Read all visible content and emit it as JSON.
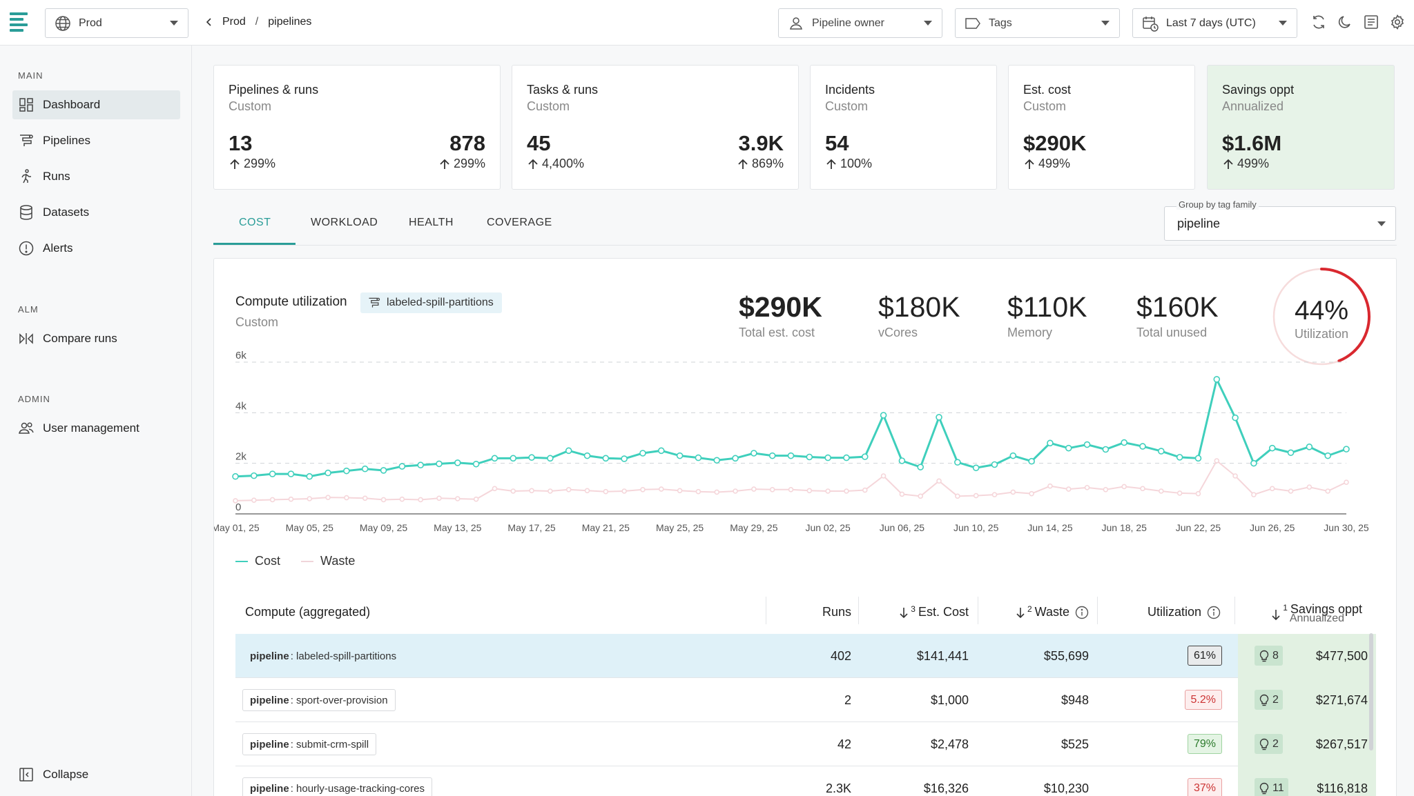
{
  "topbar": {
    "env_label": "Prod",
    "breadcrumb": [
      "Prod",
      "pipelines"
    ],
    "filters": [
      {
        "icon": "person-icon",
        "label": "Pipeline owner"
      },
      {
        "icon": "tag-icon",
        "label": "Tags"
      },
      {
        "icon": "calendar-clock-icon",
        "label": "Last 7 days (UTC)"
      }
    ],
    "icons": [
      "refresh-icon",
      "moon-icon",
      "notes-icon",
      "gear-icon"
    ]
  },
  "sidebar": {
    "sections": [
      {
        "title": "MAIN",
        "items": [
          {
            "label": "Dashboard",
            "icon": "dashboard-icon",
            "active": true
          },
          {
            "label": "Pipelines",
            "icon": "pipelines-icon"
          },
          {
            "label": "Runs",
            "icon": "runs-icon"
          },
          {
            "label": "Datasets",
            "icon": "database-icon"
          },
          {
            "label": "Alerts",
            "icon": "alert-icon"
          }
        ]
      },
      {
        "title": "ALM",
        "items": [
          {
            "label": "Compare runs",
            "icon": "compare-icon"
          }
        ]
      },
      {
        "title": "ADMIN",
        "items": [
          {
            "label": "User management",
            "icon": "users-icon"
          }
        ]
      }
    ],
    "collapse_label": "Collapse"
  },
  "cards": [
    {
      "title": "Pipelines & runs",
      "subtitle": "Custom",
      "values": [
        {
          "value": "13",
          "pct": "299%"
        },
        {
          "value": "878",
          "pct": "299%"
        }
      ]
    },
    {
      "title": "Tasks & runs",
      "subtitle": "Custom",
      "values": [
        {
          "value": "45",
          "pct": "4,400%"
        },
        {
          "value": "3.9K",
          "pct": "869%"
        }
      ]
    },
    {
      "title": "Incidents",
      "subtitle": "Custom",
      "values": [
        {
          "value": "54",
          "pct": "100%"
        }
      ]
    },
    {
      "title": "Est. cost",
      "subtitle": "Custom",
      "values": [
        {
          "value": "$290K",
          "pct": "499%"
        }
      ]
    },
    {
      "title": "Savings oppt",
      "subtitle": "Annualized",
      "values": [
        {
          "value": "$1.6M",
          "pct": "499%"
        }
      ]
    }
  ],
  "tabs": [
    "COST",
    "WORKLOAD",
    "HEALTH",
    "COVERAGE"
  ],
  "active_tab": "COST",
  "group_by": {
    "label": "Group by tag family",
    "value": "pipeline"
  },
  "panel": {
    "title": "Compute utilization",
    "subtitle": "Custom",
    "chip": "labeled-spill-partitions",
    "metrics": [
      {
        "value": "$290K",
        "label": "Total est. cost",
        "bold": true
      },
      {
        "value": "$180K",
        "label": "vCores"
      },
      {
        "value": "$110K",
        "label": "Memory"
      },
      {
        "value": "$160K",
        "label": "Total unused"
      }
    ],
    "utilization": {
      "value": "44%",
      "label": "Utilization",
      "fraction": 0.44
    }
  },
  "colors": {
    "cost": "#3fcfbc",
    "waste": "#f5d6da",
    "accent": "#2a9d98",
    "ring": "#d9282f"
  },
  "chart_data": {
    "type": "line",
    "x": [
      "May 01, 25",
      "May 02, 25",
      "May 03, 25",
      "May 04, 25",
      "May 05, 25",
      "May 06, 25",
      "May 07, 25",
      "May 08, 25",
      "May 09, 25",
      "May 10, 25",
      "May 11, 25",
      "May 12, 25",
      "May 13, 25",
      "May 14, 25",
      "May 15, 25",
      "May 16, 25",
      "May 17, 25",
      "May 18, 25",
      "May 19, 25",
      "May 20, 25",
      "May 21, 25",
      "May 22, 25",
      "May 23, 25",
      "May 24, 25",
      "May 25, 25",
      "May 26, 25",
      "May 27, 25",
      "May 28, 25",
      "May 29, 25",
      "May 30, 25",
      "May 31, 25",
      "Jun 01, 25",
      "Jun 02, 25",
      "Jun 03, 25",
      "Jun 04, 25",
      "Jun 05, 25",
      "Jun 06, 25",
      "Jun 07, 25",
      "Jun 08, 25",
      "Jun 09, 25",
      "Jun 10, 25",
      "Jun 11, 25",
      "Jun 12, 25",
      "Jun 13, 25",
      "Jun 14, 25",
      "Jun 15, 25",
      "Jun 16, 25",
      "Jun 17, 25",
      "Jun 18, 25",
      "Jun 19, 25",
      "Jun 20, 25",
      "Jun 21, 25",
      "Jun 22, 25",
      "Jun 23, 25",
      "Jun 24, 25",
      "Jun 25, 25",
      "Jun 26, 25",
      "Jun 27, 25",
      "Jun 28, 25",
      "Jun 29, 25",
      "Jun 30, 25"
    ],
    "tick_labels": [
      "May 01, 25",
      "May 05, 25",
      "May 09, 25",
      "May 13, 25",
      "May 17, 25",
      "May 21, 25",
      "May 25, 25",
      "May 29, 25",
      "Jun 02, 25",
      "Jun 06, 25",
      "Jun 10, 25",
      "Jun 14, 25",
      "Jun 18, 25",
      "Jun 22, 25",
      "Jun 26, 25",
      "Jun 30, 25"
    ],
    "y_ticks": [
      "0",
      "2k",
      "4k",
      "6k"
    ],
    "ylim": [
      0,
      6000
    ],
    "grid": true,
    "series": [
      {
        "name": "Cost",
        "values": [
          1480,
          1510,
          1580,
          1580,
          1480,
          1620,
          1700,
          1780,
          1720,
          1880,
          1930,
          1980,
          2020,
          1970,
          2200,
          2200,
          2230,
          2200,
          2500,
          2300,
          2200,
          2180,
          2400,
          2500,
          2300,
          2220,
          2120,
          2200,
          2400,
          2300,
          2300,
          2250,
          2220,
          2220,
          2260,
          3900,
          2100,
          1850,
          3820,
          2040,
          1820,
          1950,
          2300,
          2080,
          2800,
          2600,
          2740,
          2550,
          2820,
          2670,
          2480,
          2240,
          2200,
          5320,
          3800,
          2000,
          2600,
          2420,
          2650,
          2300,
          2560
        ],
        "note": ""
      },
      {
        "name": "Waste",
        "values": [
          520,
          540,
          560,
          580,
          600,
          650,
          640,
          620,
          560,
          580,
          560,
          620,
          600,
          580,
          1000,
          900,
          920,
          900,
          960,
          920,
          880,
          900,
          960,
          980,
          920,
          880,
          860,
          900,
          980,
          960,
          960,
          920,
          900,
          900,
          940,
          1500,
          780,
          700,
          1300,
          700,
          720,
          760,
          860,
          800,
          1100,
          980,
          1040,
          960,
          1080,
          1000,
          900,
          820,
          800,
          2100,
          1500,
          760,
          1000,
          900,
          1060,
          900,
          1250
        ]
      }
    ]
  },
  "table": {
    "headers": {
      "name": "Compute (aggregated)",
      "runs": "Runs",
      "cost": "Est. Cost",
      "cost_rank": "3",
      "waste": "Waste",
      "waste_rank": "2",
      "util": "Utilization",
      "savings": "Savings oppt",
      "savings_sub": "Annualized",
      "savings_rank": "1"
    },
    "rows": [
      {
        "key": "pipeline",
        "name": "labeled-spill-partitions",
        "runs": "402",
        "cost": "$141,441",
        "waste": "$55,699",
        "util": "61%",
        "util_state": "gray",
        "bulbs": "8",
        "savings": "$477,500",
        "selected": true
      },
      {
        "key": "pipeline",
        "name": "sport-over-provision",
        "runs": "2",
        "cost": "$1,000",
        "waste": "$948",
        "util": "5.2%",
        "util_state": "red",
        "bulbs": "2",
        "savings": "$271,674"
      },
      {
        "key": "pipeline",
        "name": "submit-crm-spill",
        "runs": "42",
        "cost": "$2,478",
        "waste": "$525",
        "util": "79%",
        "util_state": "green",
        "bulbs": "2",
        "savings": "$267,517"
      },
      {
        "key": "pipeline",
        "name": "hourly-usage-tracking-cores",
        "runs": "2.3K",
        "cost": "$16,326",
        "waste": "$10,230",
        "util": "37%",
        "util_state": "red",
        "bulbs": "11",
        "savings": "$116,818"
      }
    ]
  }
}
